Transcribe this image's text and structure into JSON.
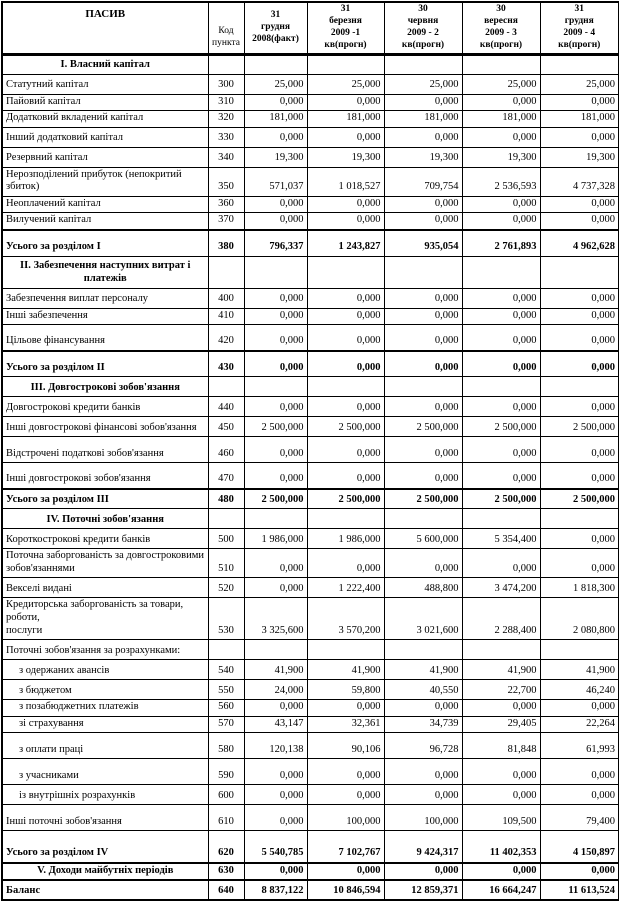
{
  "table": {
    "header": {
      "name": "ПАСИВ",
      "code": "Код\nпункта",
      "periods": [
        "31\nгрудня\n2008(факт)",
        "31\nберезня\n2009 -1 кв(прогн)",
        "30\nчервня\n2009 - 2 кв(прогн)",
        "30\nвересня\n2009 - 3 кв(прогн)",
        "31\nгрудня\n2009 - 4 кв(прогн)"
      ]
    },
    "rows": [
      {
        "type": "section",
        "size": "m",
        "name": "I. Власний капітал",
        "code": "",
        "values": [
          "",
          "",
          "",
          "",
          ""
        ]
      },
      {
        "type": "item",
        "size": "m",
        "name": "Статутний капітал",
        "code": "300",
        "values": [
          "25,000",
          "25,000",
          "25,000",
          "25,000",
          "25,000"
        ]
      },
      {
        "type": "item",
        "size": "s",
        "name": "Пайовий капітал",
        "code": "310",
        "values": [
          "0,000",
          "0,000",
          "0,000",
          "0,000",
          "0,000"
        ]
      },
      {
        "type": "item",
        "size": "s",
        "name": "Додатковий вкладений капітал",
        "code": "320",
        "values": [
          "181,000",
          "181,000",
          "181,000",
          "181,000",
          "181,000"
        ]
      },
      {
        "type": "item",
        "size": "m",
        "name": "Інший додатковий капітал",
        "code": "330",
        "values": [
          "0,000",
          "0,000",
          "0,000",
          "0,000",
          "0,000"
        ]
      },
      {
        "type": "item",
        "size": "m",
        "name": "Резервний капітал",
        "code": "340",
        "values": [
          "19,300",
          "19,300",
          "19,300",
          "19,300",
          "19,300"
        ]
      },
      {
        "type": "item",
        "size": "m",
        "name": "Нерозподілений прибуток (непокритий збиток)",
        "code": "350",
        "values": [
          "571,037",
          "1 018,527",
          "709,754",
          "2 536,593",
          "4 737,328"
        ]
      },
      {
        "type": "item",
        "size": "s",
        "name": "Неоплачений капітал",
        "code": "360",
        "values": [
          "0,000",
          "0,000",
          "0,000",
          "0,000",
          "0,000"
        ]
      },
      {
        "type": "item",
        "size": "s",
        "name": "Вилучений капітал",
        "code": "370",
        "values": [
          "0,000",
          "0,000",
          "0,000",
          "0,000",
          "0,000"
        ]
      },
      {
        "type": "total",
        "size": "l",
        "thick_top": true,
        "name": "Усього за розділом I",
        "code": "380",
        "values": [
          "796,337",
          "1 243,827",
          "935,054",
          "2 761,893",
          "4 962,628"
        ]
      },
      {
        "type": "section",
        "size": "xl",
        "name": "II. Забезпечення наступних витрат і платежів",
        "code": "",
        "values": [
          "",
          "",
          "",
          "",
          ""
        ]
      },
      {
        "type": "item",
        "size": "m",
        "name": "Забезпечення виплат персоналу",
        "code": "400",
        "values": [
          "0,000",
          "0,000",
          "0,000",
          "0,000",
          "0,000"
        ]
      },
      {
        "type": "item",
        "size": "s",
        "name": "Інші забезпечення",
        "code": "410",
        "values": [
          "0,000",
          "0,000",
          "0,000",
          "0,000",
          "0,000"
        ]
      },
      {
        "type": "item",
        "size": "l",
        "name": "Цільове фінансування",
        "code": "420",
        "values": [
          "0,000",
          "0,000",
          "0,000",
          "0,000",
          "0,000"
        ]
      },
      {
        "type": "total",
        "size": "l",
        "thick_top": true,
        "name": "Усього за розділом II",
        "code": "430",
        "values": [
          "0,000",
          "0,000",
          "0,000",
          "0,000",
          "0,000"
        ]
      },
      {
        "type": "section",
        "size": "m",
        "name": "III. Довгострокові зобов'язання",
        "code": "",
        "values": [
          "",
          "",
          "",
          "",
          ""
        ]
      },
      {
        "type": "item",
        "size": "m",
        "name": "Довгострокові кредити банків",
        "code": "440",
        "values": [
          "0,000",
          "0,000",
          "0,000",
          "0,000",
          "0,000"
        ]
      },
      {
        "type": "item",
        "size": "m",
        "name": "Інші довгострокові фінансові зобов'язання",
        "code": "450",
        "values": [
          "2 500,000",
          "2 500,000",
          "2 500,000",
          "2 500,000",
          "2 500,000"
        ]
      },
      {
        "type": "item",
        "size": "l",
        "name": "Відстрочені податкові зобов'язання",
        "code": "460",
        "values": [
          "0,000",
          "0,000",
          "0,000",
          "0,000",
          "0,000"
        ]
      },
      {
        "type": "item",
        "size": "l",
        "name": "Інші довгострокові зобов'язання",
        "code": "470",
        "values": [
          "0,000",
          "0,000",
          "0,000",
          "0,000",
          "0,000"
        ]
      },
      {
        "type": "total",
        "size": "m",
        "thick_top": true,
        "name": "Усього за розділом III",
        "code": "480",
        "values": [
          "2 500,000",
          "2 500,000",
          "2 500,000",
          "2 500,000",
          "2 500,000"
        ]
      },
      {
        "type": "section",
        "size": "m",
        "name": "IV. Поточні зобов'язання",
        "code": "",
        "values": [
          "",
          "",
          "",
          "",
          ""
        ]
      },
      {
        "type": "item",
        "size": "m",
        "name": "Короткострокові кредити банків",
        "code": "500",
        "values": [
          "1 986,000",
          "1 986,000",
          "5 600,000",
          "5 354,400",
          "0,000"
        ]
      },
      {
        "type": "item",
        "size": "l",
        "name": "Поточна заборгованість за довгостроковими\nзобов'язаннями",
        "code": "510",
        "values": [
          "0,000",
          "0,000",
          "0,000",
          "0,000",
          "0,000"
        ]
      },
      {
        "type": "item",
        "size": "m",
        "name": "Векселі видані",
        "code": "520",
        "values": [
          "0,000",
          "1 222,400",
          "488,800",
          "3 474,200",
          "1 818,300"
        ]
      },
      {
        "type": "item",
        "size": "xxl",
        "name": "Кредиторська заборгованість за товари, роботи,\nпослуги",
        "code": "530",
        "values": [
          "3 325,600",
          "3 570,200",
          "3 021,600",
          "2 288,400",
          "2 080,800"
        ]
      },
      {
        "type": "subheader",
        "size": "m",
        "name": "Поточні зобов'язання за розрахунками:",
        "code": "",
        "values": [
          "",
          "",
          "",
          "",
          ""
        ]
      },
      {
        "type": "subitem",
        "size": "m",
        "name": "з одержаних авансів",
        "code": "540",
        "values": [
          "41,900",
          "41,900",
          "41,900",
          "41,900",
          "41,900"
        ]
      },
      {
        "type": "subitem",
        "size": "m",
        "name": "з бюджетом",
        "code": "550",
        "values": [
          "24,000",
          "59,800",
          "40,550",
          "22,700",
          "46,240"
        ]
      },
      {
        "type": "subitem",
        "size": "s",
        "name": "з позабюджетних платежів",
        "code": "560",
        "values": [
          "0,000",
          "0,000",
          "0,000",
          "0,000",
          "0,000"
        ]
      },
      {
        "type": "subitem",
        "size": "s",
        "name": "зі страхування",
        "code": "570",
        "values": [
          "43,147",
          "32,361",
          "34,739",
          "29,405",
          "22,264"
        ]
      },
      {
        "type": "subitem",
        "size": "l",
        "name": "з оплати праці",
        "code": "580",
        "values": [
          "120,138",
          "90,106",
          "96,728",
          "81,848",
          "61,993"
        ]
      },
      {
        "type": "subitem",
        "size": "l",
        "name": "з учасниками",
        "code": "590",
        "values": [
          "0,000",
          "0,000",
          "0,000",
          "0,000",
          "0,000"
        ]
      },
      {
        "type": "subitem",
        "size": "m",
        "name": "із внутрішніх розрахунків",
        "code": "600",
        "values": [
          "0,000",
          "0,000",
          "0,000",
          "0,000",
          "0,000"
        ]
      },
      {
        "type": "item",
        "size": "l",
        "name": "Інші поточні зобов'язання",
        "code": "610",
        "values": [
          "0,000",
          "100,000",
          "100,000",
          "109,500",
          "79,400"
        ]
      },
      {
        "type": "total",
        "size": "xl",
        "name": "Усього за розділом IV",
        "code": "620",
        "values": [
          "5 540,785",
          "7 102,767",
          "9 424,317",
          "11 402,353",
          "4 150,897"
        ]
      },
      {
        "type": "section-total",
        "size": "s",
        "thick_top": true,
        "name": "V. Доходи майбутніх періодів",
        "code": "630",
        "values": [
          "0,000",
          "0,000",
          "0,000",
          "0,000",
          "0,000"
        ]
      },
      {
        "type": "total",
        "size": "m",
        "thick_top": true,
        "name": "Баланс",
        "code": "640",
        "values": [
          "8 837,122",
          "10 846,594",
          "12 859,371",
          "16 664,247",
          "11 613,524"
        ]
      }
    ]
  }
}
